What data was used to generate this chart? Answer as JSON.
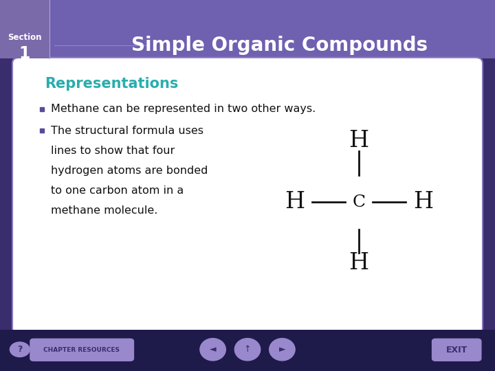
{
  "title": "Simple Organic Compounds",
  "section_label": "Section",
  "section_number": "1",
  "section_box_color": "#7b6aaa",
  "header_bg_color": "#7060b0",
  "header_text_color": "#ffffff",
  "slide_bg_color": "#3a2d6e",
  "content_bg_color": "#ffffff",
  "content_border_color": "#8877bb",
  "representations_title": "Representations",
  "representations_color": "#2aadad",
  "bullet1": "Methane can be represented in two other ways.",
  "bullet2_lines": [
    "The structural formula uses",
    "lines to show that four",
    "hydrogen atoms are bonded",
    "to one carbon atom in a",
    "methane molecule."
  ],
  "bullet_color": "#5a4a9a",
  "text_color": "#111111",
  "bottom_bar_color": "#1e1a4a",
  "button_bg_color": "#9988cc",
  "button_text_color": "#3a2d6e",
  "nav_arrow_color": "#3a2d6e"
}
